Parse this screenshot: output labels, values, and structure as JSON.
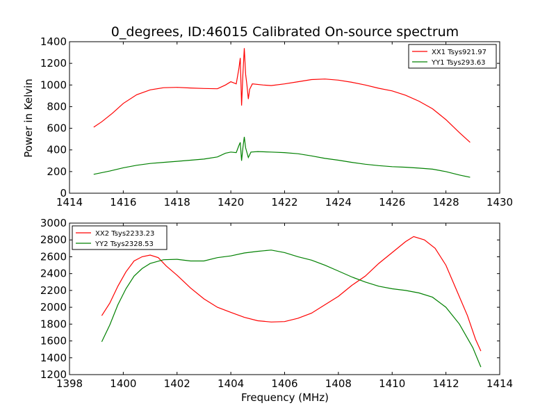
{
  "chart_data": [
    {
      "type": "line",
      "title": "0_degrees, ID:46015 Calibrated On-source spectrum",
      "xlabel": "",
      "ylabel": "Power in Kelvin",
      "xlim": [
        1414,
        1430
      ],
      "ylim": [
        0,
        1400
      ],
      "xticks": [
        1414,
        1416,
        1418,
        1420,
        1422,
        1424,
        1426,
        1428,
        1430
      ],
      "yticks": [
        0,
        200,
        400,
        600,
        800,
        1000,
        1200,
        1400
      ],
      "legend_position": "upper right",
      "series": [
        {
          "name": "XX1 Tsys921.97",
          "color": "#ff0000",
          "points": [
            [
              1414.9,
              610
            ],
            [
              1415.2,
              660
            ],
            [
              1415.6,
              740
            ],
            [
              1416.0,
              830
            ],
            [
              1416.5,
              910
            ],
            [
              1417.0,
              955
            ],
            [
              1417.5,
              975
            ],
            [
              1418.0,
              978
            ],
            [
              1418.5,
              972
            ],
            [
              1419.0,
              968
            ],
            [
              1419.5,
              965
            ],
            [
              1419.8,
              1000
            ],
            [
              1420.0,
              1030
            ],
            [
              1420.2,
              1010
            ],
            [
              1420.3,
              1150
            ],
            [
              1420.35,
              1250
            ],
            [
              1420.4,
              810
            ],
            [
              1420.45,
              1100
            ],
            [
              1420.5,
              1340
            ],
            [
              1420.55,
              1100
            ],
            [
              1420.6,
              1000
            ],
            [
              1420.65,
              870
            ],
            [
              1420.7,
              960
            ],
            [
              1420.8,
              1010
            ],
            [
              1421.2,
              1000
            ],
            [
              1421.5,
              995
            ],
            [
              1422.0,
              1010
            ],
            [
              1422.5,
              1030
            ],
            [
              1423.0,
              1050
            ],
            [
              1423.5,
              1055
            ],
            [
              1424.0,
              1045
            ],
            [
              1424.5,
              1025
            ],
            [
              1425.0,
              1000
            ],
            [
              1425.5,
              970
            ],
            [
              1426.0,
              945
            ],
            [
              1426.5,
              905
            ],
            [
              1427.0,
              850
            ],
            [
              1427.5,
              780
            ],
            [
              1428.0,
              680
            ],
            [
              1428.5,
              560
            ],
            [
              1428.9,
              470
            ]
          ]
        },
        {
          "name": "YY1 Tsys293.63",
          "color": "#008000",
          "points": [
            [
              1414.9,
              175
            ],
            [
              1415.5,
              205
            ],
            [
              1416.0,
              235
            ],
            [
              1416.5,
              258
            ],
            [
              1417.0,
              275
            ],
            [
              1417.5,
              285
            ],
            [
              1418.0,
              295
            ],
            [
              1418.5,
              305
            ],
            [
              1419.0,
              315
            ],
            [
              1419.5,
              335
            ],
            [
              1419.8,
              370
            ],
            [
              1420.0,
              380
            ],
            [
              1420.2,
              375
            ],
            [
              1420.3,
              440
            ],
            [
              1420.35,
              470
            ],
            [
              1420.4,
              300
            ],
            [
              1420.45,
              420
            ],
            [
              1420.5,
              520
            ],
            [
              1420.55,
              420
            ],
            [
              1420.65,
              330
            ],
            [
              1420.75,
              380
            ],
            [
              1421.0,
              385
            ],
            [
              1421.5,
              380
            ],
            [
              1422.0,
              375
            ],
            [
              1422.5,
              365
            ],
            [
              1423.0,
              345
            ],
            [
              1423.5,
              322
            ],
            [
              1424.0,
              305
            ],
            [
              1424.5,
              285
            ],
            [
              1425.0,
              268
            ],
            [
              1425.5,
              255
            ],
            [
              1426.0,
              245
            ],
            [
              1426.5,
              240
            ],
            [
              1427.0,
              232
            ],
            [
              1427.5,
              222
            ],
            [
              1428.0,
              200
            ],
            [
              1428.5,
              168
            ],
            [
              1428.9,
              147
            ]
          ]
        }
      ]
    },
    {
      "type": "line",
      "title": "",
      "xlabel": "Frequency (MHz)",
      "ylabel": "",
      "xlim": [
        1398,
        1414
      ],
      "ylim": [
        1200,
        3000
      ],
      "xticks": [
        1398,
        1400,
        1402,
        1404,
        1406,
        1408,
        1410,
        1412,
        1414
      ],
      "yticks": [
        1200,
        1400,
        1600,
        1800,
        2000,
        2200,
        2400,
        2600,
        2800,
        3000
      ],
      "legend_position": "upper left",
      "series": [
        {
          "name": "XX2 Tsys2233.23",
          "color": "#ff0000",
          "points": [
            [
              1399.2,
              1900
            ],
            [
              1399.5,
              2050
            ],
            [
              1399.8,
              2250
            ],
            [
              1400.1,
              2420
            ],
            [
              1400.4,
              2550
            ],
            [
              1400.7,
              2600
            ],
            [
              1401.0,
              2620
            ],
            [
              1401.3,
              2590
            ],
            [
              1401.6,
              2490
            ],
            [
              1402.0,
              2380
            ],
            [
              1402.5,
              2230
            ],
            [
              1403.0,
              2100
            ],
            [
              1403.5,
              2000
            ],
            [
              1404.0,
              1940
            ],
            [
              1404.5,
              1880
            ],
            [
              1405.0,
              1840
            ],
            [
              1405.5,
              1825
            ],
            [
              1406.0,
              1830
            ],
            [
              1406.5,
              1870
            ],
            [
              1407.0,
              1930
            ],
            [
              1407.5,
              2030
            ],
            [
              1408.0,
              2130
            ],
            [
              1408.5,
              2260
            ],
            [
              1409.0,
              2370
            ],
            [
              1409.5,
              2520
            ],
            [
              1410.0,
              2650
            ],
            [
              1410.5,
              2780
            ],
            [
              1410.8,
              2840
            ],
            [
              1411.2,
              2800
            ],
            [
              1411.6,
              2700
            ],
            [
              1412.0,
              2500
            ],
            [
              1412.4,
              2200
            ],
            [
              1412.8,
              1900
            ],
            [
              1413.1,
              1620
            ],
            [
              1413.3,
              1480
            ]
          ]
        },
        {
          "name": "YY2 Tsys2328.53",
          "color": "#008000",
          "points": [
            [
              1399.2,
              1590
            ],
            [
              1399.5,
              1790
            ],
            [
              1399.8,
              2030
            ],
            [
              1400.1,
              2220
            ],
            [
              1400.4,
              2370
            ],
            [
              1400.7,
              2460
            ],
            [
              1401.0,
              2520
            ],
            [
              1401.5,
              2565
            ],
            [
              1402.0,
              2570
            ],
            [
              1402.5,
              2550
            ],
            [
              1403.0,
              2550
            ],
            [
              1403.5,
              2590
            ],
            [
              1404.0,
              2610
            ],
            [
              1404.5,
              2645
            ],
            [
              1405.0,
              2665
            ],
            [
              1405.5,
              2680
            ],
            [
              1406.0,
              2650
            ],
            [
              1406.5,
              2600
            ],
            [
              1407.0,
              2560
            ],
            [
              1407.5,
              2500
            ],
            [
              1408.0,
              2430
            ],
            [
              1408.5,
              2360
            ],
            [
              1409.0,
              2300
            ],
            [
              1409.5,
              2250
            ],
            [
              1410.0,
              2220
            ],
            [
              1410.5,
              2200
            ],
            [
              1411.0,
              2170
            ],
            [
              1411.5,
              2120
            ],
            [
              1412.0,
              2000
            ],
            [
              1412.5,
              1800
            ],
            [
              1413.0,
              1520
            ],
            [
              1413.3,
              1290
            ]
          ]
        }
      ]
    }
  ]
}
